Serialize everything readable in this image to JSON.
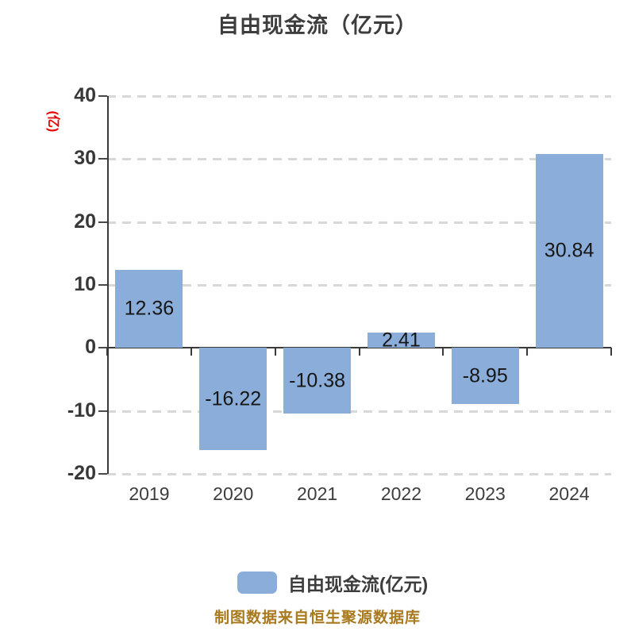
{
  "title": "自由现金流（亿元）",
  "y_axis_unit": "(亿)",
  "source_note": "制图数据来自恒生聚源数据库",
  "legend": {
    "label": "自由现金流(亿元)",
    "swatch_color": "#8badd9"
  },
  "chart_data": {
    "type": "bar",
    "title": "自由现金流（亿元）",
    "categories": [
      "2019",
      "2020",
      "2021",
      "2022",
      "2023",
      "2024"
    ],
    "series": [
      {
        "name": "自由现金流(亿元)",
        "values": [
          12.36,
          -16.22,
          -10.38,
          2.41,
          -8.95,
          30.84
        ],
        "value_labels": [
          "12.36",
          "-16.22",
          "-10.38",
          "2.41",
          "-8.95",
          "30.84"
        ]
      }
    ],
    "xlabel": "",
    "ylabel": "(亿)",
    "ylim": [
      -20,
      40
    ],
    "y_ticks": [
      40,
      30,
      20,
      10,
      0,
      -10,
      -20
    ],
    "grid": "horizontal-dashed",
    "legend_position": "bottom",
    "bar_color": "#8badd9",
    "value_label_color": "#161616",
    "axis_color": "#3a3a3a",
    "gridline_color": "#d8d8d8",
    "unit_label_color": "#e60000",
    "source_note_color": "#a8791d"
  }
}
